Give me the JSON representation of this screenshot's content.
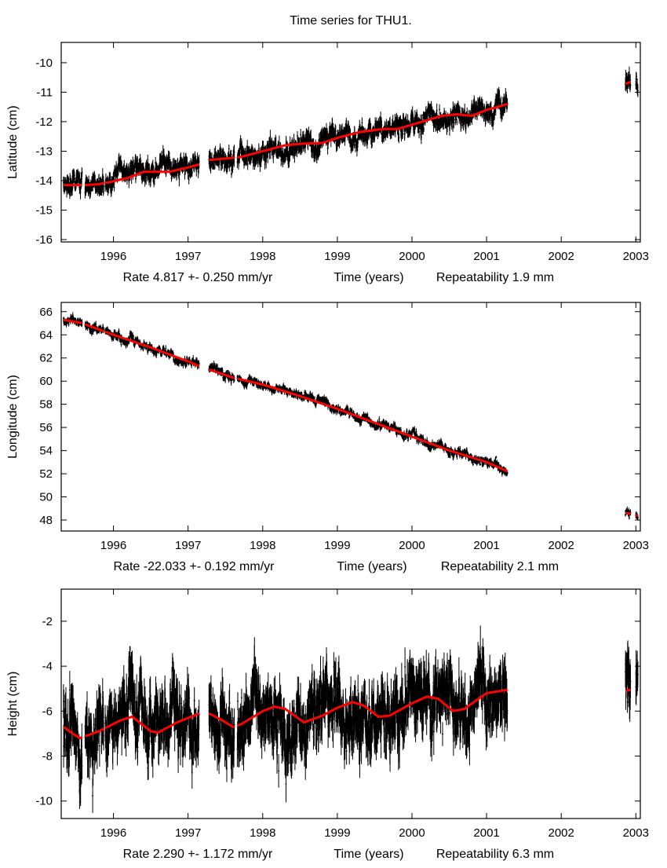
{
  "title": "Time series for THU1.",
  "colors": {
    "data": "#000000",
    "model": "#ff0000",
    "axis": "#000000"
  },
  "chart_data": [
    {
      "type": "scatter",
      "ylabel": "Latitude (cm)",
      "xlabel_rate": "Rate 4.817 +- 0.250 mm/yr",
      "xlabel": "Time (years)",
      "xlabel_repeat": "Repeatability 1.9 mm",
      "xlim": [
        1995.3,
        2003.06
      ],
      "ylim": [
        -16.08,
        -9.31
      ],
      "xticks": [
        1996,
        1997,
        1998,
        1999,
        2000,
        2001,
        2002,
        2003
      ],
      "yticks": [
        -10,
        -11,
        -12,
        -13,
        -14,
        -15,
        -16
      ],
      "data_segments": [
        [
          1995.33,
          1995.58
        ],
        [
          1995.62,
          1995.87
        ],
        [
          1995.89,
          1997.15
        ],
        [
          1997.28,
          1997.62
        ],
        [
          1997.66,
          2001.28
        ],
        [
          2002.86,
          2002.93
        ],
        [
          2003.0,
          2003.03
        ]
      ],
      "scatter_std": 0.18,
      "model_curve": {
        "x": [
          1995.33,
          1995.58,
          1995.62,
          1995.8,
          1995.95,
          1996.2,
          1996.4,
          1996.75,
          1997.0,
          1997.15,
          1997.28,
          1997.5,
          1997.7,
          1998.0,
          1998.3,
          1998.5,
          1998.8,
          1999.0,
          1999.3,
          1999.6,
          1999.8,
          2000.0,
          2000.2,
          2000.4,
          2000.6,
          2000.8,
          2001.0,
          2001.28,
          2002.86,
          2002.93
        ],
        "y": [
          -14.15,
          -14.15,
          -14.15,
          -14.12,
          -14.05,
          -13.9,
          -13.7,
          -13.7,
          -13.55,
          -13.45,
          -13.3,
          -13.25,
          -13.2,
          -13.0,
          -12.8,
          -12.75,
          -12.72,
          -12.55,
          -12.35,
          -12.25,
          -12.25,
          -12.1,
          -11.95,
          -11.8,
          -11.75,
          -11.8,
          -11.6,
          -11.4,
          -10.72,
          -10.65
        ]
      }
    },
    {
      "type": "scatter",
      "ylabel": "Longitude (cm)",
      "xlabel_rate": "Rate -22.033 +- 0.192 mm/yr",
      "xlabel": "Time (years)",
      "xlabel_repeat": "Repeatability 2.1 mm",
      "xlim": [
        1995.3,
        2003.06
      ],
      "ylim": [
        47.05,
        66.8
      ],
      "xticks": [
        1996,
        1997,
        1998,
        1999,
        2000,
        2001,
        2002,
        2003
      ],
      "yticks": [
        66,
        64,
        62,
        60,
        58,
        56,
        54,
        52,
        50,
        48
      ],
      "data_segments": [
        [
          1995.33,
          1995.58
        ],
        [
          1995.62,
          1995.87
        ],
        [
          1995.89,
          1997.15
        ],
        [
          1997.28,
          1997.62
        ],
        [
          1997.66,
          2001.28
        ],
        [
          2002.86,
          2002.93
        ],
        [
          2003.0,
          2003.03
        ]
      ],
      "scatter_std": 0.2,
      "model_curve": {
        "x": [
          1995.33,
          1995.58,
          1995.62,
          1996.0,
          1996.5,
          1997.0,
          1997.15,
          1997.28,
          1997.6,
          1998.0,
          1998.5,
          1999.0,
          1999.5,
          2000.0,
          2000.5,
          2001.0,
          2001.28,
          2002.86,
          2002.93,
          2003.0,
          2003.03
        ],
        "y": [
          65.3,
          65.0,
          64.9,
          64.0,
          62.9,
          61.7,
          61.3,
          61.0,
          60.3,
          59.7,
          58.7,
          57.6,
          56.4,
          55.2,
          54.0,
          53.0,
          52.2,
          48.6,
          48.55,
          48.4,
          48.4
        ]
      }
    },
    {
      "type": "scatter",
      "ylabel": "Height (cm)",
      "xlabel_rate": "Rate 2.290 +- 1.172 mm/yr",
      "xlabel": "Time (years)",
      "xlabel_repeat": "Repeatability 6.3 mm",
      "xlim": [
        1995.3,
        2003.06
      ],
      "ylim": [
        -10.78,
        -0.57
      ],
      "xticks": [
        1996,
        1997,
        1998,
        1999,
        2000,
        2001,
        2002,
        2003
      ],
      "yticks": [
        -2,
        -4,
        -6,
        -8,
        -10
      ],
      "data_segments": [
        [
          1995.33,
          1995.58
        ],
        [
          1995.62,
          1995.87
        ],
        [
          1995.89,
          1997.15
        ],
        [
          1997.28,
          1997.62
        ],
        [
          1997.66,
          2001.28
        ],
        [
          2002.86,
          2002.93
        ],
        [
          2003.0,
          2003.03
        ]
      ],
      "scatter_std": 0.75,
      "model_curve": {
        "x": [
          1995.33,
          1995.45,
          1995.55,
          1995.8,
          1996.1,
          1996.25,
          1996.5,
          1996.6,
          1996.85,
          1997.15,
          1997.28,
          1997.45,
          1997.6,
          1997.7,
          1998.0,
          1998.15,
          1998.3,
          1998.55,
          1998.8,
          1999.0,
          1999.2,
          1999.35,
          1999.55,
          1999.7,
          2000.0,
          2000.2,
          2000.35,
          2000.55,
          2000.7,
          2001.0,
          2001.28,
          2002.86,
          2002.93
        ],
        "y": [
          -6.7,
          -7.0,
          -7.2,
          -6.9,
          -6.4,
          -6.25,
          -6.9,
          -6.95,
          -6.5,
          -6.1,
          -6.1,
          -6.4,
          -6.7,
          -6.6,
          -6.0,
          -5.8,
          -5.9,
          -6.5,
          -6.2,
          -5.85,
          -5.6,
          -5.75,
          -6.25,
          -6.2,
          -5.65,
          -5.35,
          -5.45,
          -6.0,
          -5.9,
          -5.2,
          -5.05,
          -5.1,
          -5.05
        ]
      }
    }
  ]
}
